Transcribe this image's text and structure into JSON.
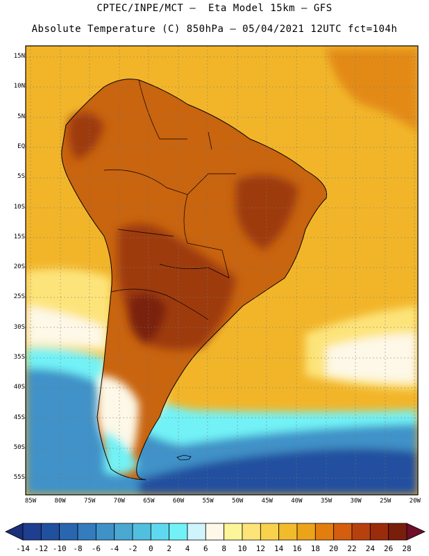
{
  "title_line1": "CPTEC/INPE/MCT –  Eta Model 15km – GFS",
  "title_line2": "Absolute Temperature (C) 850hPa – 05/04/2021 12UTC fct=104h",
  "lat_labels": [
    "15N",
    "10N",
    "5N",
    "EQ",
    "5S",
    "10S",
    "15S",
    "20S",
    "25S",
    "30S",
    "35S",
    "40S",
    "45S",
    "50S",
    "55S"
  ],
  "lon_labels": [
    "85W",
    "80W",
    "75W",
    "70W",
    "65W",
    "60W",
    "55W",
    "50W",
    "45W",
    "40W",
    "35W",
    "30W",
    "25W",
    "20W"
  ],
  "colorbar": {
    "labels": [
      "-14",
      "-12",
      "-10",
      "-8",
      "-6",
      "-4",
      "-2",
      "0",
      "2",
      "4",
      "6",
      "8",
      "10",
      "12",
      "14",
      "16",
      "18",
      "20",
      "22",
      "24",
      "26",
      "28"
    ],
    "colors": [
      "#1e3f8f",
      "#21509f",
      "#2a66b0",
      "#347cbd",
      "#3f92c8",
      "#4aa8d3",
      "#52bfe0",
      "#5fd9ef",
      "#72f2f6",
      "#cff4fb",
      "#fdf8e7",
      "#fdf59a",
      "#fde47a",
      "#f8d24d",
      "#f2bb2c",
      "#eba319",
      "#e37d0e",
      "#d45e0e",
      "#b7410d",
      "#9a2c0c",
      "#7a1e0c"
    ],
    "low_color": "#1b2f7a",
    "high_color": "#6f0f2a"
  },
  "map_colors": {
    "ocean_warm": "#f2b52a",
    "ocean_hot": "#e38a12",
    "land_hot": "#c9640f",
    "land_very_hot": "#9e3a0e",
    "land_core": "#7a2410",
    "mild": "#fde47a",
    "cool": "#fdf8e7",
    "cold1": "#72f2f6",
    "cold2": "#3f92c8",
    "cold3": "#21509f"
  }
}
